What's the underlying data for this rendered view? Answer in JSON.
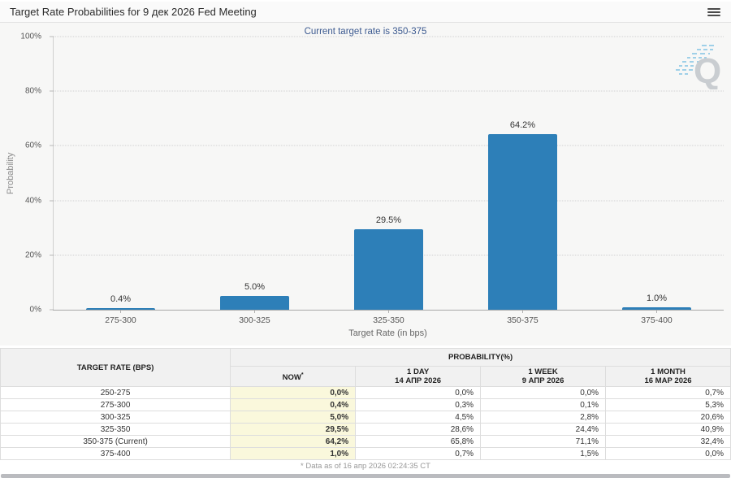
{
  "header": {
    "title": "Target Rate Probabilities for 9 дек 2026 Fed Meeting"
  },
  "chart_data": {
    "type": "bar",
    "title": "Target Rate Probabilities for 9 дек 2026 Fed Meeting",
    "subtitle": "Current target rate is 350-375",
    "categories": [
      "275-300",
      "300-325",
      "325-350",
      "350-375",
      "375-400"
    ],
    "values": [
      0.4,
      5.0,
      29.5,
      64.2,
      1.0
    ],
    "bar_labels": [
      "0.4%",
      "5.0%",
      "29.5%",
      "64.2%",
      "1.0%"
    ],
    "xlabel": "Target Rate (in bps)",
    "ylabel": "Probability",
    "ylim": [
      0,
      100
    ],
    "y_ticks": [
      "0%",
      "20%",
      "40%",
      "60%",
      "80%",
      "100%"
    ],
    "grid": true,
    "legend": "none",
    "bar_color": "#2d7fb8",
    "watermark": "Q"
  },
  "table": {
    "rate_header": "TARGET RATE (BPS)",
    "prob_header": "PROBABILITY(%)",
    "cols": [
      {
        "line1": "NOW",
        "sup": "*",
        "line2": ""
      },
      {
        "line1": "1 DAY",
        "sup": "",
        "line2": "14 АПР 2026"
      },
      {
        "line1": "1 WEEK",
        "sup": "",
        "line2": "9 АПР 2026"
      },
      {
        "line1": "1 MONTH",
        "sup": "",
        "line2": "16 МАР 2026"
      }
    ],
    "rows": [
      {
        "rate": "250-275",
        "now": "0,0%",
        "day": "0,0%",
        "week": "0,0%",
        "month": "0,7%"
      },
      {
        "rate": "275-300",
        "now": "0,4%",
        "day": "0,3%",
        "week": "0,1%",
        "month": "5,3%"
      },
      {
        "rate": "300-325",
        "now": "5,0%",
        "day": "4,5%",
        "week": "2,8%",
        "month": "20,6%"
      },
      {
        "rate": "325-350",
        "now": "29,5%",
        "day": "28,6%",
        "week": "24,4%",
        "month": "40,9%"
      },
      {
        "rate": "350-375 (Current)",
        "now": "64,2%",
        "day": "65,8%",
        "week": "71,1%",
        "month": "32,4%"
      },
      {
        "rate": "375-400",
        "now": "1,0%",
        "day": "0,7%",
        "week": "1,5%",
        "month": "0,0%"
      }
    ]
  },
  "footer": {
    "note": "* Data as of 16 апр 2026 02:24:35 CT"
  }
}
